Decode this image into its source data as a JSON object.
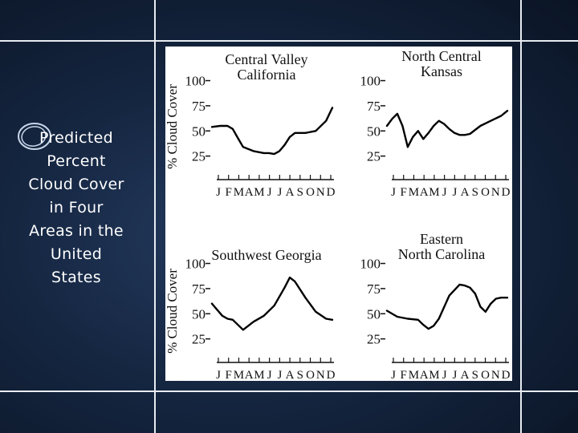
{
  "slide": {
    "title_lines": [
      "Predicted",
      "Percent",
      "Cloud Cover",
      "in Four",
      "Areas in the",
      "United",
      "States"
    ]
  },
  "colors": {
    "background": "#152641",
    "frame_lines": "#e8ecf2",
    "curve": "#000000",
    "figure_background": "#ffffff"
  },
  "chart_data": [
    {
      "type": "line",
      "title": "Central Valley\nCalifornia",
      "ylabel": "% Cloud Cover",
      "yticks": [
        "100",
        "75",
        "50",
        "25"
      ],
      "xtick_labels": [
        "J",
        "F",
        "M",
        "A",
        "M",
        "J",
        "J",
        "A",
        "S",
        "O",
        "N",
        "D"
      ],
      "ylim": [
        0,
        110
      ],
      "x": [
        0,
        0.8,
        1.5,
        2,
        2.5,
        3,
        4,
        5,
        5.5,
        6,
        6.5,
        7,
        7.5,
        8,
        9,
        10,
        11,
        11.6
      ],
      "y": [
        54,
        55,
        55,
        52,
        43,
        34,
        30,
        28,
        28,
        27,
        30,
        36,
        44,
        48,
        48,
        50,
        60,
        73
      ]
    },
    {
      "type": "line",
      "title": "North Central\nKansas",
      "ylabel": "",
      "yticks": [
        "100",
        "75",
        "50",
        "25"
      ],
      "xtick_labels": [
        "J",
        "F",
        "M",
        "A",
        "M",
        "J",
        "J",
        "A",
        "S",
        "O",
        "N",
        "D"
      ],
      "ylim": [
        0,
        110
      ],
      "x": [
        0,
        0.5,
        1,
        1.5,
        2,
        2.5,
        3,
        3.5,
        4,
        4.5,
        5,
        5.5,
        6,
        6.5,
        7,
        7.5,
        8,
        9,
        10,
        11,
        11.6
      ],
      "y": [
        55,
        62,
        67,
        55,
        34,
        44,
        50,
        42,
        48,
        55,
        60,
        57,
        52,
        48,
        46,
        46,
        47,
        55,
        60,
        65,
        70
      ]
    },
    {
      "type": "line",
      "title": "Southwest Georgia",
      "ylabel": "% Cloud Cover",
      "yticks": [
        "100",
        "75",
        "50",
        "25"
      ],
      "xtick_labels": [
        "J",
        "F",
        "M",
        "A",
        "M",
        "J",
        "J",
        "A",
        "S",
        "O",
        "N",
        "D"
      ],
      "ylim": [
        0,
        110
      ],
      "x": [
        0,
        1,
        1.5,
        2,
        3,
        3.5,
        4,
        5,
        6,
        7,
        7.5,
        8,
        9,
        10,
        11,
        11.6
      ],
      "y": [
        60,
        48,
        45,
        44,
        34,
        38,
        42,
        48,
        58,
        76,
        86,
        82,
        66,
        52,
        45,
        44
      ]
    },
    {
      "type": "line",
      "title": "Eastern\nNorth Carolina",
      "ylabel": "",
      "yticks": [
        "100",
        "75",
        "50",
        "25"
      ],
      "xtick_labels": [
        "J",
        "F",
        "M",
        "A",
        "M",
        "J",
        "J",
        "A",
        "S",
        "O",
        "N",
        "D"
      ],
      "ylim": [
        0,
        110
      ],
      "x": [
        0,
        1,
        2,
        3,
        3.5,
        4,
        4.5,
        5,
        6,
        7,
        7.5,
        8,
        8.5,
        9,
        9.5,
        10,
        10.5,
        11,
        11.6
      ],
      "y": [
        53,
        47,
        45,
        44,
        39,
        35,
        38,
        45,
        68,
        79,
        78,
        76,
        70,
        57,
        52,
        60,
        65,
        66,
        66
      ]
    }
  ]
}
